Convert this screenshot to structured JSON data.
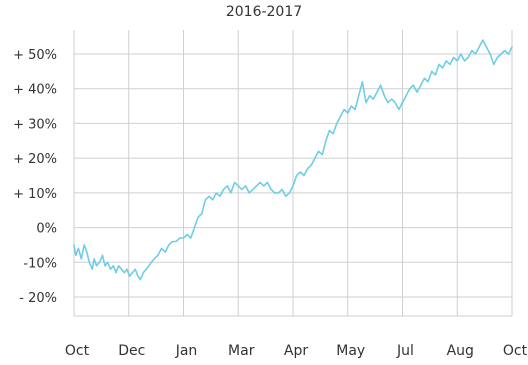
{
  "chart_data": {
    "type": "line",
    "title": "2016-2017",
    "xlabel": "",
    "ylabel": "",
    "grid": true,
    "legend": "none",
    "line_color": "#6fcde6",
    "grid_color": "#cfcfcf",
    "ylim": [
      -25,
      55
    ],
    "xlim": [
      0,
      12
    ],
    "y_ticks": [
      {
        "value": 50,
        "label": "+ 50%"
      },
      {
        "value": 40,
        "label": "+ 40%"
      },
      {
        "value": 30,
        "label": "+ 30%"
      },
      {
        "value": 20,
        "label": "+ 20%"
      },
      {
        "value": 10,
        "label": "+ 10%"
      },
      {
        "value": 0,
        "label": "0%"
      },
      {
        "value": -10,
        "label": "-10%"
      },
      {
        "value": -20,
        "label": "- 20%"
      }
    ],
    "x_ticks": [
      {
        "value": 0,
        "label": "Oct"
      },
      {
        "value": 1.5,
        "label": "Dec"
      },
      {
        "value": 3,
        "label": "Jan"
      },
      {
        "value": 4.5,
        "label": "Mar"
      },
      {
        "value": 6,
        "label": "Apr"
      },
      {
        "value": 7.5,
        "label": "May"
      },
      {
        "value": 9,
        "label": "Jul"
      },
      {
        "value": 10.5,
        "label": "Aug"
      },
      {
        "value": 12,
        "label": "Oct"
      }
    ],
    "series": [
      {
        "x": [
          0,
          0.05,
          0.12,
          0.2,
          0.28,
          0.35,
          0.42,
          0.5,
          0.55,
          0.62,
          0.7,
          0.78,
          0.85,
          0.92,
          1.0,
          1.08,
          1.15,
          1.22,
          1.3,
          1.38,
          1.45,
          1.52,
          1.6,
          1.68,
          1.75,
          1.82,
          1.9,
          1.98,
          2.05,
          2.12,
          2.2,
          2.3,
          2.4,
          2.5,
          2.6,
          2.7,
          2.8,
          2.9,
          3.0,
          3.1,
          3.2,
          3.3,
          3.4,
          3.5,
          3.6,
          3.7,
          3.8,
          3.9,
          4.0,
          4.1,
          4.2,
          4.3,
          4.4,
          4.5,
          4.6,
          4.7,
          4.8,
          4.9,
          5.0,
          5.1,
          5.2,
          5.3,
          5.4,
          5.5,
          5.6,
          5.7,
          5.8,
          5.9,
          6.0,
          6.1,
          6.2,
          6.3,
          6.4,
          6.5,
          6.6,
          6.7,
          6.8,
          6.9,
          7.0,
          7.1,
          7.2,
          7.3,
          7.4,
          7.5,
          7.6,
          7.7,
          7.8,
          7.9,
          8.0,
          8.1,
          8.2,
          8.3,
          8.4,
          8.5,
          8.6,
          8.7,
          8.8,
          8.9,
          9.0,
          9.1,
          9.2,
          9.3,
          9.4,
          9.5,
          9.6,
          9.7,
          9.8,
          9.9,
          10.0,
          10.1,
          10.2,
          10.3,
          10.4,
          10.5,
          10.6,
          10.7,
          10.8,
          10.9,
          11.0,
          11.1,
          11.2,
          11.3,
          11.4,
          11.5,
          11.6,
          11.7,
          11.8,
          11.9,
          12.0
        ],
        "values": [
          -5,
          -8,
          -6,
          -9,
          -5,
          -7,
          -10,
          -12,
          -9,
          -11,
          -10,
          -8,
          -11,
          -10,
          -12,
          -11,
          -13,
          -11,
          -12,
          -13,
          -12,
          -14,
          -13,
          -12,
          -14,
          -15,
          -13,
          -12,
          -11,
          -10,
          -9,
          -8,
          -6,
          -7,
          -5,
          -4,
          -4,
          -3,
          -3,
          -2,
          -3,
          0,
          3,
          4,
          8,
          9,
          8,
          10,
          9,
          11,
          12,
          10,
          13,
          12,
          11,
          12,
          10,
          11,
          12,
          13,
          12,
          13,
          11,
          10,
          10,
          11,
          9,
          10,
          12,
          15,
          16,
          15,
          17,
          18,
          20,
          22,
          21,
          25,
          28,
          27,
          30,
          32,
          34,
          33,
          35,
          34,
          38,
          42,
          36,
          38,
          37,
          39,
          41,
          38,
          36,
          37,
          36,
          34,
          36,
          38,
          40,
          41,
          39,
          41,
          43,
          42,
          45,
          44,
          47,
          46,
          48,
          47,
          49,
          48,
          50,
          48,
          49,
          51,
          50,
          52,
          54,
          52,
          50,
          47,
          49,
          50,
          51,
          50,
          52
        ]
      }
    ]
  }
}
